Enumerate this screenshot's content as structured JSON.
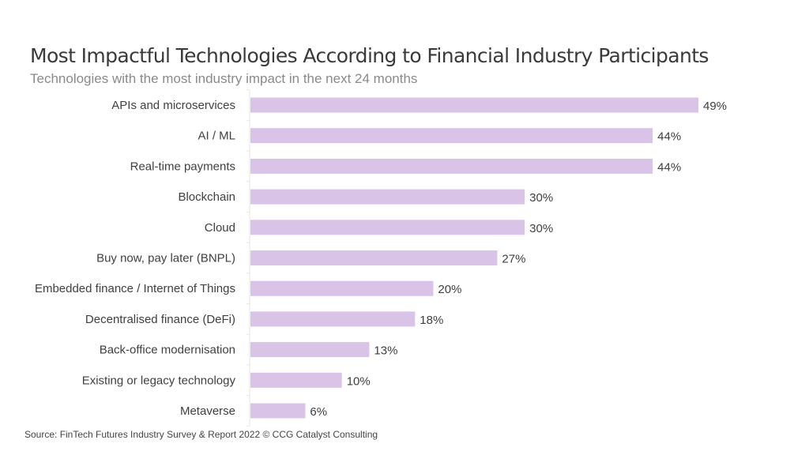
{
  "title": "Most Impactful Technologies According to Financial Industry Participants",
  "subtitle": "Technologies with the most industry impact in the next 24 months",
  "source": "Source: FinTech Futures Industry Survey & Report 2022  © CCG Catalyst Consulting",
  "colors": {
    "bar": "#d9c3e6",
    "axis": "#e6e6e6",
    "text": "#404040"
  },
  "chart_data": {
    "type": "bar",
    "orientation": "horizontal",
    "title": "Most Impactful Technologies According to Financial Industry Participants",
    "subtitle": "Technologies with the most industry impact in the next 24 months",
    "xlabel": "",
    "ylabel": "",
    "unit": "%",
    "xlim": [
      0,
      49
    ],
    "grid": false,
    "legend": "none",
    "categories": [
      "APIs and microservices",
      "AI / ML",
      "Real-time payments",
      "Blockchain",
      "Cloud",
      "Buy now, pay later (BNPL)",
      "Embedded finance / Internet of Things",
      "Decentralised finance (DeFi)",
      "Back-office modernisation",
      "Existing or legacy technology",
      "Metaverse"
    ],
    "values": [
      49,
      44,
      44,
      30,
      30,
      27,
      20,
      18,
      13,
      10,
      6
    ],
    "data_labels": [
      "49%",
      "44%",
      "44%",
      "30%",
      "30%",
      "27%",
      "20%",
      "18%",
      "13%",
      "10%",
      "6%"
    ]
  }
}
